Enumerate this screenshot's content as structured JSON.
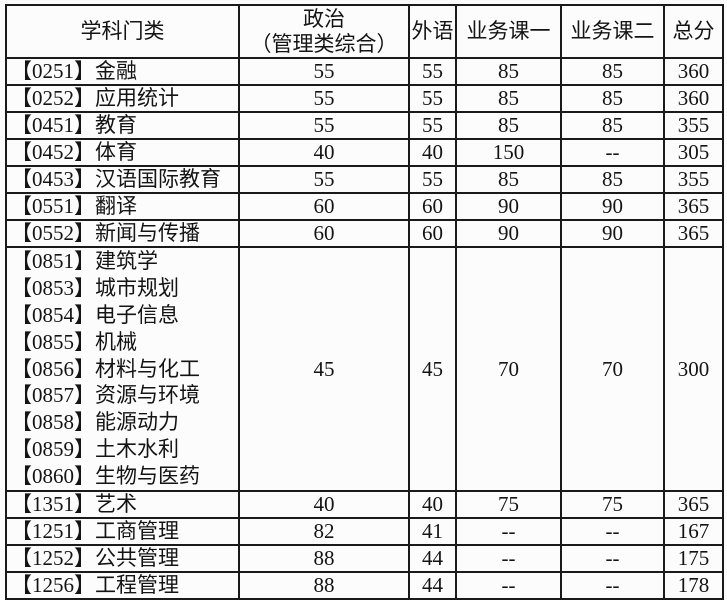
{
  "page": {
    "background": "#fcfcfc",
    "border_color": "#1a1a1a",
    "text_color": "#141414"
  },
  "table": {
    "header": {
      "subject": "学科门类",
      "politics_line1": "政治",
      "politics_line2": "（管理类综合）",
      "foreign": "外语",
      "course1": "业务课一",
      "course2": "业务课二",
      "total": "总分"
    },
    "rows": [
      {
        "subjects": [
          "【0251】金融"
        ],
        "politics": "55",
        "foreign": "55",
        "course1": "85",
        "course2": "85",
        "total": "360"
      },
      {
        "subjects": [
          "【0252】应用统计"
        ],
        "politics": "55",
        "foreign": "55",
        "course1": "85",
        "course2": "85",
        "total": "360"
      },
      {
        "subjects": [
          "【0451】教育"
        ],
        "politics": "55",
        "foreign": "55",
        "course1": "85",
        "course2": "85",
        "total": "355"
      },
      {
        "subjects": [
          "【0452】体育"
        ],
        "politics": "40",
        "foreign": "40",
        "course1": "150",
        "course2": "--",
        "total": "305"
      },
      {
        "subjects": [
          "【0453】汉语国际教育"
        ],
        "politics": "55",
        "foreign": "55",
        "course1": "85",
        "course2": "85",
        "total": "355"
      },
      {
        "subjects": [
          "【0551】翻译"
        ],
        "politics": "60",
        "foreign": "60",
        "course1": "90",
        "course2": "90",
        "total": "365"
      },
      {
        "subjects": [
          "【0552】新闻与传播"
        ],
        "politics": "60",
        "foreign": "60",
        "course1": "90",
        "course2": "90",
        "total": "365"
      },
      {
        "subjects": [
          "【0851】建筑学",
          "【0853】城市规划",
          "【0854】电子信息",
          "【0855】机械",
          "【0856】材料与化工",
          "【0857】资源与环境",
          "【0858】能源动力",
          "【0859】土木水利",
          "【0860】生物与医药"
        ],
        "politics": "45",
        "foreign": "45",
        "course1": "70",
        "course2": "70",
        "total": "300"
      },
      {
        "subjects": [
          "【1351】艺术"
        ],
        "politics": "40",
        "foreign": "40",
        "course1": "75",
        "course2": "75",
        "total": "365"
      },
      {
        "subjects": [
          "【1251】工商管理"
        ],
        "politics": "82",
        "foreign": "41",
        "course1": "--",
        "course2": "--",
        "total": "167"
      },
      {
        "subjects": [
          "【1252】公共管理"
        ],
        "politics": "88",
        "foreign": "44",
        "course1": "--",
        "course2": "--",
        "total": "175"
      },
      {
        "subjects": [
          "【1256】工程管理"
        ],
        "politics": "88",
        "foreign": "44",
        "course1": "--",
        "course2": "--",
        "total": "178"
      }
    ]
  }
}
